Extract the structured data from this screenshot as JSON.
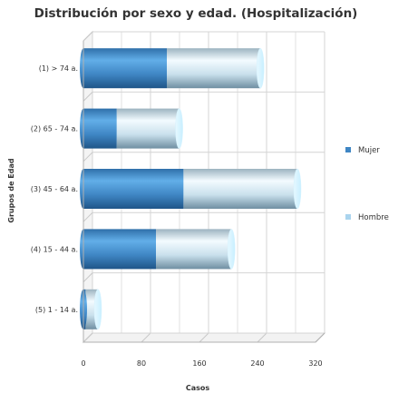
{
  "chart_data": {
    "type": "bar",
    "orientation": "horizontal",
    "stacked": true,
    "style": "3d-cylinder",
    "title": "Distribución por sexo y edad. (Hospitalización)",
    "xlabel": "Casos",
    "ylabel": "Grupos de Edad",
    "categories": [
      "(1) > 74 a.",
      "(2) 65 - 74 a.",
      "(3) 45 - 64 a.",
      "(4) 15 - 44 a.",
      "(5) 1 - 14 a."
    ],
    "series": [
      {
        "name": "Mujer",
        "values": [
          115,
          46,
          138,
          100,
          3
        ]
      },
      {
        "name": "Hombre",
        "values": [
          129,
          86,
          157,
          104,
          17
        ]
      }
    ],
    "xlim": [
      0,
      320
    ],
    "x_ticks": [
      0,
      80,
      160,
      240,
      320
    ],
    "grid": true,
    "legend_position": "right",
    "colors": {
      "Mujer": "#3f86c4",
      "Hombre": "#aad4ee"
    }
  }
}
